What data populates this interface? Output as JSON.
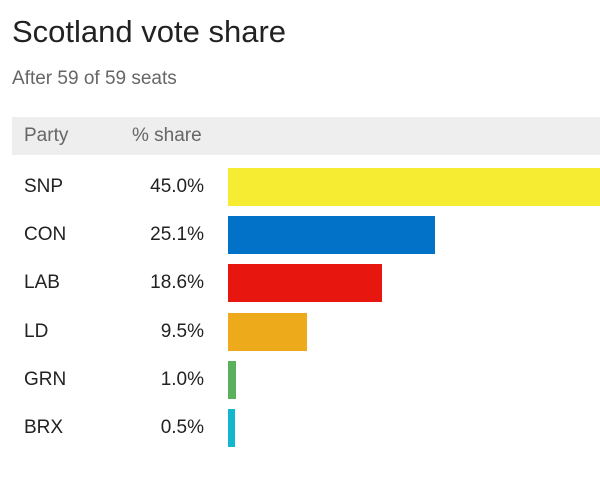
{
  "title": "Scotland vote share",
  "subtitle": "After 59 of 59 seats",
  "table_header": {
    "party": "Party",
    "share": "% share"
  },
  "chart_data": {
    "type": "bar",
    "title": "Scotland vote share",
    "subtitle": "After 59 of 59 seats",
    "xlim": [
      0,
      45
    ],
    "categories": [
      "SNP",
      "CON",
      "LAB",
      "LD",
      "GRN",
      "BRX"
    ],
    "values": [
      45.0,
      25.1,
      18.6,
      9.5,
      1.0,
      0.5
    ],
    "value_labels": [
      "45.0%",
      "25.1%",
      "18.6%",
      "9.5%",
      "1.0%",
      "0.5%"
    ],
    "colors": [
      "#f6ec32",
      "#0272c8",
      "#e7160e",
      "#edaa1b",
      "#5ab05c",
      "#12b6cf"
    ]
  }
}
